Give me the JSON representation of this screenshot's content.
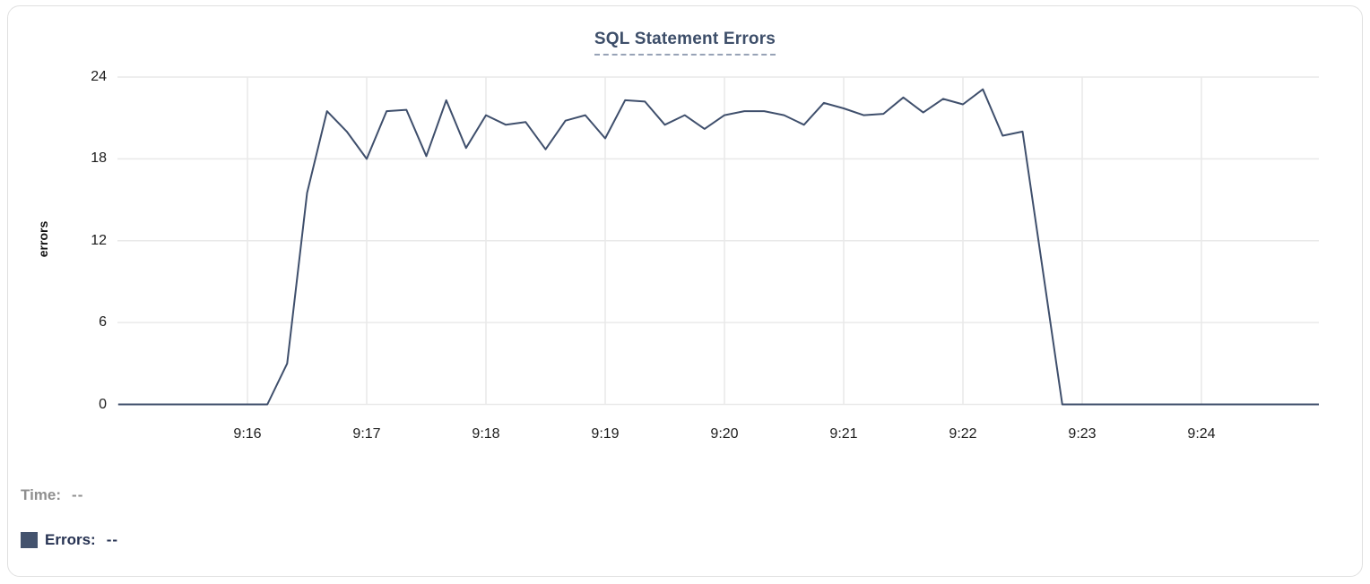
{
  "card": {
    "title": "SQL Statement Errors"
  },
  "readout": {
    "time_label": "Time:",
    "time_value": "--",
    "errors_label": "Errors:",
    "errors_value": "--"
  },
  "colors": {
    "line": "#3f4f6c",
    "grid": "#e9e9e9",
    "title": "#3d4e69",
    "title_underline": "#97a2b6",
    "tick_text": "#1b1b1b",
    "time_text": "#8f8f8f",
    "errors_text": "#263252",
    "swatch": "#44536e",
    "card_border": "#e0e0e0"
  },
  "chart_data": {
    "type": "line",
    "title": "SQL Statement Errors",
    "xlabel": "",
    "ylabel": "errors",
    "ylim": [
      0,
      24
    ],
    "yticks": [
      0,
      6,
      12,
      18,
      24
    ],
    "xticks": [
      "9:16",
      "9:17",
      "9:18",
      "9:19",
      "9:20",
      "9:21",
      "9:22",
      "9:23",
      "9:24"
    ],
    "x_range": [
      "9:14:55",
      "9:25:00"
    ],
    "grid": true,
    "legend_position": "bottom-left",
    "series": [
      {
        "name": "Errors",
        "points": [
          [
            "9:14:55",
            0
          ],
          [
            "9:15:10",
            0
          ],
          [
            "9:15:20",
            0
          ],
          [
            "9:15:30",
            0
          ],
          [
            "9:15:40",
            0
          ],
          [
            "9:15:50",
            0
          ],
          [
            "9:16:00",
            0
          ],
          [
            "9:16:10",
            0
          ],
          [
            "9:16:20",
            3
          ],
          [
            "9:16:30",
            15.5
          ],
          [
            "9:16:40",
            21.5
          ],
          [
            "9:16:50",
            20
          ],
          [
            "9:17:00",
            18
          ],
          [
            "9:17:10",
            21.5
          ],
          [
            "9:17:20",
            21.6
          ],
          [
            "9:17:30",
            18.2
          ],
          [
            "9:17:40",
            22.3
          ],
          [
            "9:17:50",
            18.8
          ],
          [
            "9:18:00",
            21.2
          ],
          [
            "9:18:10",
            20.5
          ],
          [
            "9:18:20",
            20.7
          ],
          [
            "9:18:30",
            18.7
          ],
          [
            "9:18:40",
            20.8
          ],
          [
            "9:18:50",
            21.2
          ],
          [
            "9:19:00",
            19.5
          ],
          [
            "9:19:10",
            22.3
          ],
          [
            "9:19:20",
            22.2
          ],
          [
            "9:19:30",
            20.5
          ],
          [
            "9:19:40",
            21.2
          ],
          [
            "9:19:50",
            20.2
          ],
          [
            "9:20:00",
            21.2
          ],
          [
            "9:20:10",
            21.5
          ],
          [
            "9:20:20",
            21.5
          ],
          [
            "9:20:30",
            21.2
          ],
          [
            "9:20:40",
            20.5
          ],
          [
            "9:20:50",
            22.1
          ],
          [
            "9:21:00",
            21.7
          ],
          [
            "9:21:10",
            21.2
          ],
          [
            "9:21:20",
            21.3
          ],
          [
            "9:21:30",
            22.5
          ],
          [
            "9:21:40",
            21.4
          ],
          [
            "9:21:50",
            22.4
          ],
          [
            "9:22:00",
            22
          ],
          [
            "9:22:10",
            23.1
          ],
          [
            "9:22:20",
            19.7
          ],
          [
            "9:22:30",
            20
          ],
          [
            "9:22:40",
            10
          ],
          [
            "9:22:50",
            0
          ],
          [
            "9:23:00",
            0
          ],
          [
            "9:23:10",
            0
          ],
          [
            "9:23:20",
            0
          ],
          [
            "9:23:30",
            0
          ],
          [
            "9:23:40",
            0
          ],
          [
            "9:23:50",
            0
          ],
          [
            "9:24:00",
            0
          ],
          [
            "9:24:10",
            0
          ],
          [
            "9:24:20",
            0
          ],
          [
            "9:24:30",
            0
          ],
          [
            "9:24:40",
            0
          ],
          [
            "9:24:50",
            0
          ],
          [
            "9:25:00",
            0
          ]
        ]
      }
    ]
  }
}
